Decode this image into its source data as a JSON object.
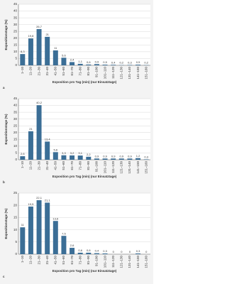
{
  "chart_data": [
    {
      "type": "bar",
      "panel": "a",
      "y_label": "Expositionstage (%)",
      "x_label": "Exposition pro Tag (min) (nur Einsatztage)",
      "categories": [
        "1–10",
        "11–20",
        "21–30",
        "31–40",
        "41–50",
        "51–60",
        "61–70",
        "71–80",
        "81–90",
        "91–100",
        "101–110",
        "111–120",
        "121–130",
        "131–140",
        "141–150",
        "151–160"
      ],
      "values": [
        8.3,
        19.8,
        26.7,
        21,
        11,
        5.6,
        2.4,
        1.1,
        0.6,
        0.9,
        0.5,
        0.4,
        0.2,
        0.3,
        0.5,
        0.2
      ],
      "value_labels": [
        "8,3",
        "19,8",
        "26,7",
        "21",
        "11",
        "5,6",
        "2,4",
        "1,1",
        "0,6",
        "0,9",
        "0,5",
        "0,4",
        "0,2",
        "0,3",
        "0,5",
        "0,2"
      ],
      "color": "#3b6e96",
      "ylim": [
        0,
        45
      ],
      "yticks": [
        0,
        5,
        10,
        15,
        20,
        25,
        30,
        35,
        40,
        45
      ],
      "grid": true
    },
    {
      "type": "bar",
      "panel": "b",
      "y_label": "Expositionstage (%)",
      "x_label": "Exposition pro Tag (min) (nur Einsatztage)",
      "categories": [
        "1–10",
        "11–20",
        "21–30",
        "31–40",
        "41–50",
        "51–60",
        "61–70",
        "71–80",
        "81–90",
        "91–100",
        "101–110",
        "111–120",
        "121–130",
        "131–140",
        "141–150",
        "151–160"
      ],
      "values": [
        2.6,
        21,
        40.2,
        13.4,
        5.6,
        3.3,
        3.2,
        3.1,
        2.2,
        0.9,
        0.9,
        0.9,
        0.9,
        0.9,
        1.2,
        0.3
      ],
      "value_labels": [
        "2,6",
        "21",
        "40,2",
        "13,4",
        "5,6",
        "3,3",
        "3,2",
        "3,1",
        "2,2",
        "0,9",
        "0,9",
        "0,9",
        "0,9",
        "0,9",
        "1,2",
        "0,3"
      ],
      "color": "#3b6e96",
      "ylim": [
        0,
        45
      ],
      "yticks": [
        0,
        5,
        10,
        15,
        20,
        25,
        30,
        35,
        40,
        45
      ],
      "grid": true
    },
    {
      "type": "bar",
      "panel": "c",
      "y_label": "Expositionstage (%)",
      "x_label": "Exposition pro Tag (min) (nur Einsatztage)",
      "categories": [
        "1–10",
        "11–20",
        "21–30",
        "31–40",
        "41–50",
        "51–60",
        "61–70",
        "71–80",
        "81–90",
        "91–100",
        "101–110",
        "111–120",
        "121–130",
        "131–140",
        "141–150",
        "151–160"
      ],
      "values": [
        11,
        19.5,
        22.1,
        21.1,
        13.6,
        7.5,
        2.6,
        0.6,
        0.6,
        0.4,
        0.3,
        0,
        0,
        0,
        0.3,
        0
      ],
      "value_labels": [
        "11",
        "19,5",
        "22,1",
        "21,1",
        "13,6",
        "7,5",
        "2,6",
        "0,6",
        "0,6",
        "0,4",
        "0,3",
        "0",
        "0",
        "0",
        "0,3",
        "0"
      ],
      "color": "#3b6e96",
      "ylim": [
        0,
        25
      ],
      "yticks": [
        0,
        5,
        10,
        15,
        20,
        25
      ],
      "grid": true
    }
  ]
}
